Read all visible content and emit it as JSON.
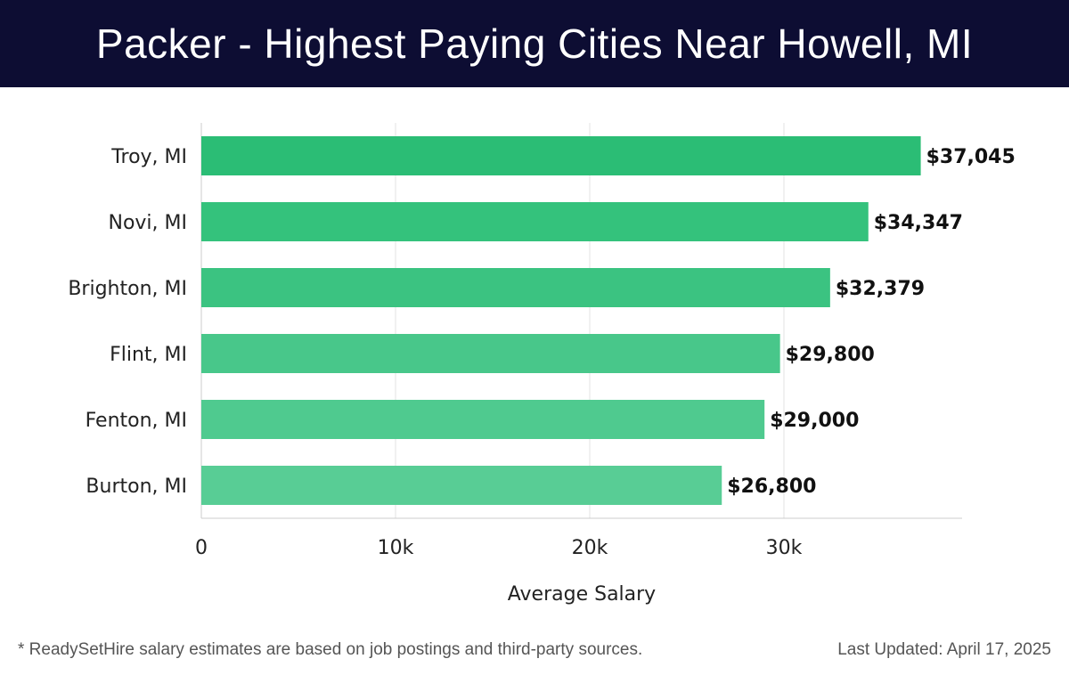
{
  "chart_data": {
    "type": "bar",
    "orientation": "horizontal",
    "title": "Packer - Highest Paying Cities Near Howell, MI",
    "categories": [
      "Troy, MI",
      "Novi, MI",
      "Brighton, MI",
      "Flint, MI",
      "Fenton, MI",
      "Burton, MI"
    ],
    "values": [
      37045,
      34347,
      32379,
      29800,
      29000,
      26800
    ],
    "value_labels": [
      "$37,045",
      "$34,347",
      "$32,379",
      "$29,800",
      "$29,000",
      "$26,800"
    ],
    "xlabel": "Average Salary",
    "ylabel": "",
    "xlim": [
      0,
      39000
    ],
    "xticks": [
      0,
      10000,
      20000,
      30000
    ],
    "xtick_labels": [
      "0",
      "10k",
      "20k",
      "30k"
    ],
    "grid": "vertical",
    "bar_colors": [
      "#2bbd75",
      "#34c27c",
      "#3bc381",
      "#48c78a",
      "#4fca8f",
      "#58cd95"
    ]
  },
  "footer": {
    "note": "* ReadySetHire salary estimates are based on job postings and third-party sources.",
    "updated": "Last Updated: April 17, 2025"
  }
}
